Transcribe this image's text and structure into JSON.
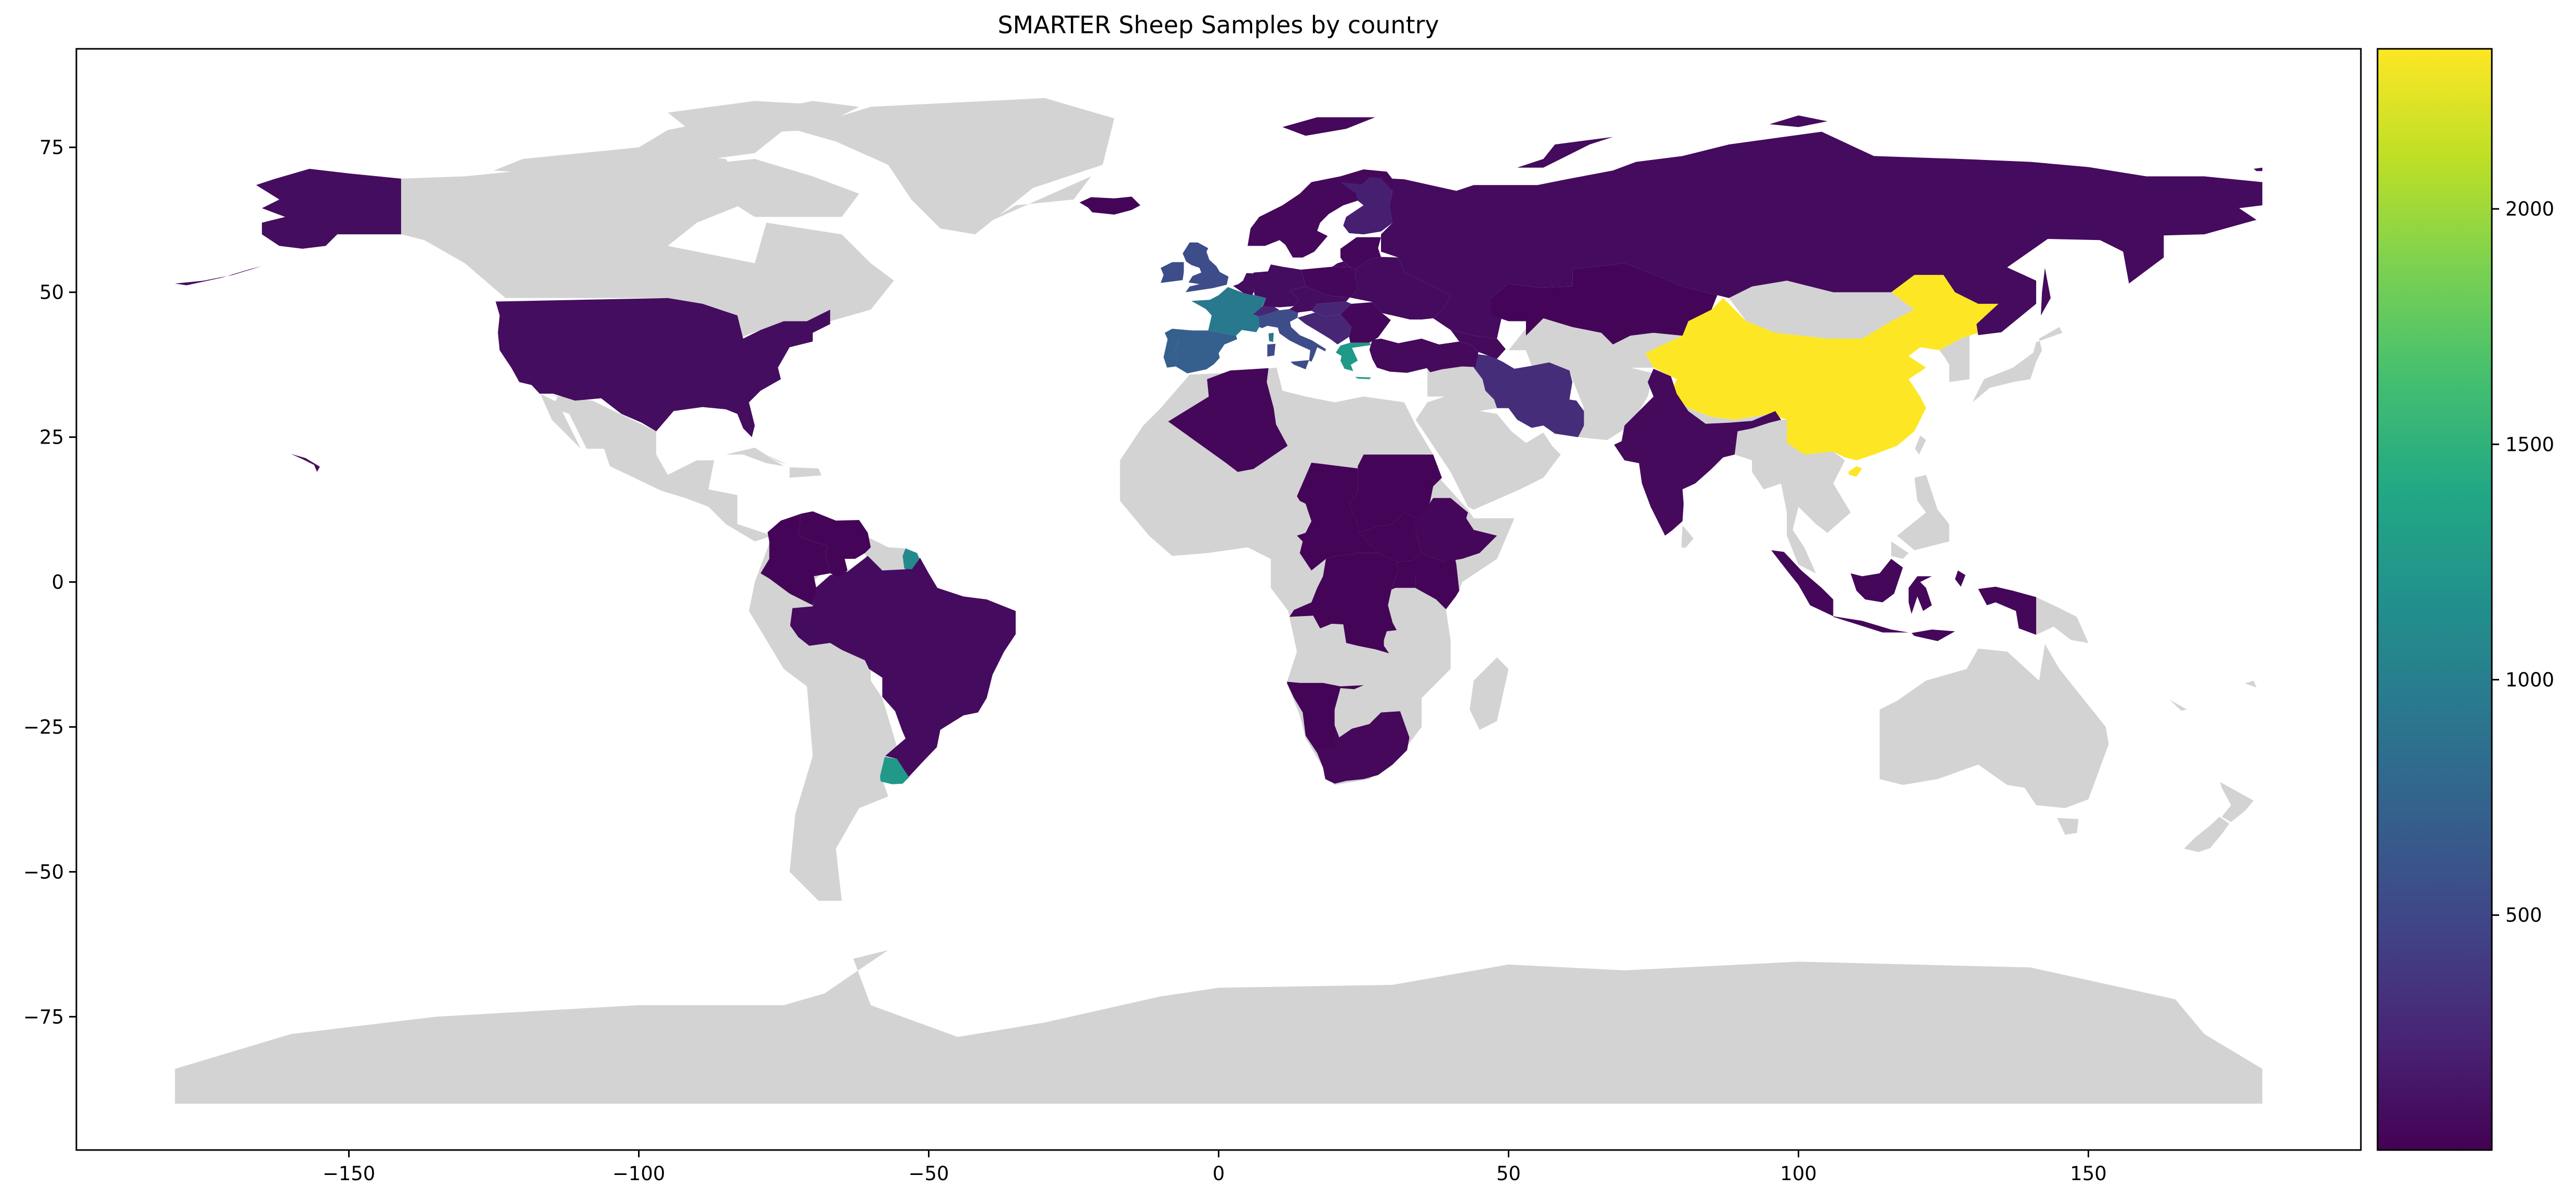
{
  "chart_data": {
    "type": "heatmap",
    "title": "SMARTER Sheep Samples by country",
    "projection": "plate-carree",
    "xlim": [
      -197,
      197
    ],
    "ylim": [
      -98,
      92
    ],
    "x_ticks": [
      -150,
      -100,
      -50,
      0,
      50,
      100,
      150
    ],
    "y_ticks": [
      75,
      50,
      25,
      0,
      -25,
      -50,
      -75
    ],
    "x_tick_labels": [
      "−150",
      "−100",
      "−50",
      "0",
      "50",
      "100",
      "150"
    ],
    "y_tick_labels": [
      "75",
      "50",
      "25",
      "0",
      "−25",
      "−50",
      "−75"
    ],
    "colorbar": {
      "colormap": "viridis",
      "range": [
        1,
        2340
      ],
      "ticks": [
        500,
        1000,
        1500,
        2000
      ],
      "tick_labels": [
        "500",
        "1000",
        "1500",
        "2000"
      ]
    },
    "no_data_color": "#d3d3d3",
    "countries": [
      {
        "name": "China",
        "value": 2340
      },
      {
        "name": "Uruguay",
        "value": 1250
      },
      {
        "name": "Greece",
        "value": 1250
      },
      {
        "name": "French Guiana",
        "value": 1100
      },
      {
        "name": "France",
        "value": 950
      },
      {
        "name": "Spain",
        "value": 700
      },
      {
        "name": "United Kingdom",
        "value": 550
      },
      {
        "name": "Italy",
        "value": 550
      },
      {
        "name": "Iran",
        "value": 300
      },
      {
        "name": "Finland",
        "value": 200
      },
      {
        "name": "Switzerland",
        "value": 250
      },
      {
        "name": "Hungary",
        "value": 250
      },
      {
        "name": "United States",
        "value": 80
      },
      {
        "name": "Brazil",
        "value": 70
      },
      {
        "name": "Russia",
        "value": 70
      },
      {
        "name": "India",
        "value": 60
      },
      {
        "name": "Indonesia",
        "value": 40
      },
      {
        "name": "Algeria",
        "value": 40
      },
      {
        "name": "South Africa",
        "value": 50
      },
      {
        "name": "Ethiopia",
        "value": 40
      },
      {
        "name": "Kazakhstan",
        "value": 30
      },
      {
        "name": "Colombia",
        "value": 30
      },
      {
        "name": "Venezuela",
        "value": 30
      },
      {
        "name": "Turkey",
        "value": 60
      },
      {
        "name": "Norway",
        "value": 50
      },
      {
        "name": "Sweden",
        "value": 50
      },
      {
        "name": "Germany",
        "value": 80
      },
      {
        "name": "Poland",
        "value": 40
      },
      {
        "name": "Iceland",
        "value": 30
      },
      {
        "name": "Namibia",
        "value": 20
      },
      {
        "name": "Congo (DRC)",
        "value": 30
      },
      {
        "name": "Chad",
        "value": 20
      },
      {
        "name": "Sudan",
        "value": 20
      },
      {
        "name": "Kenya",
        "value": 30
      },
      {
        "name": "Mongolia",
        "value": 0
      }
    ]
  }
}
